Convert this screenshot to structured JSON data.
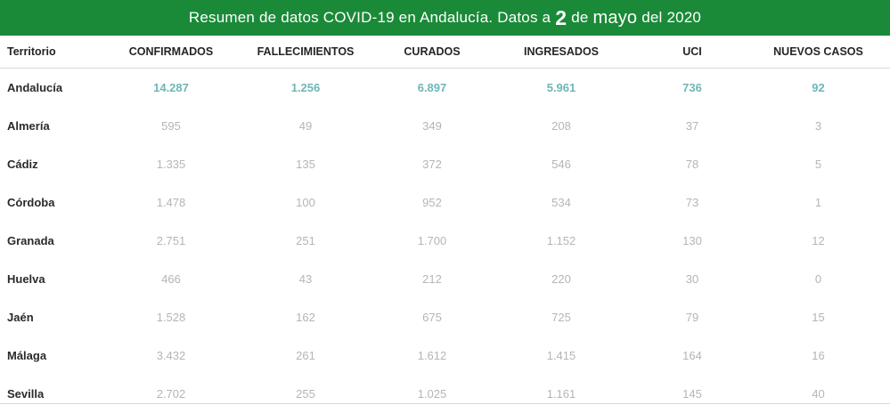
{
  "header": {
    "title_prefix": "Resumen de datos COVID-19 en Andalucía. Datos a",
    "day": "2",
    "word_de": "de",
    "month": "mayo",
    "year_part": "del 2020"
  },
  "columns": [
    "Territorio",
    "CONFIRMADOS",
    "FALLECIMIENTOS",
    "CURADOS",
    "INGRESADOS",
    "UCI",
    "NUEVOS CASOS"
  ],
  "rows": [
    {
      "territorio": "Andalucía",
      "confirmados": "14.287",
      "fallecimientos": "1.256",
      "curados": "6.897",
      "ingresados": "5.961",
      "uci": "736",
      "nuevos_casos": "92"
    },
    {
      "territorio": "Almería",
      "confirmados": "595",
      "fallecimientos": "49",
      "curados": "349",
      "ingresados": "208",
      "uci": "37",
      "nuevos_casos": "3"
    },
    {
      "territorio": "Cádiz",
      "confirmados": "1.335",
      "fallecimientos": "135",
      "curados": "372",
      "ingresados": "546",
      "uci": "78",
      "nuevos_casos": "5"
    },
    {
      "territorio": "Córdoba",
      "confirmados": "1.478",
      "fallecimientos": "100",
      "curados": "952",
      "ingresados": "534",
      "uci": "73",
      "nuevos_casos": "1"
    },
    {
      "territorio": "Granada",
      "confirmados": "2.751",
      "fallecimientos": "251",
      "curados": "1.700",
      "ingresados": "1.152",
      "uci": "130",
      "nuevos_casos": "12"
    },
    {
      "territorio": "Huelva",
      "confirmados": "466",
      "fallecimientos": "43",
      "curados": "212",
      "ingresados": "220",
      "uci": "30",
      "nuevos_casos": "0"
    },
    {
      "territorio": "Jaén",
      "confirmados": "1.528",
      "fallecimientos": "162",
      "curados": "675",
      "ingresados": "725",
      "uci": "79",
      "nuevos_casos": "15"
    },
    {
      "territorio": "Málaga",
      "confirmados": "3.432",
      "fallecimientos": "261",
      "curados": "1.612",
      "ingresados": "1.415",
      "uci": "164",
      "nuevos_casos": "16"
    },
    {
      "territorio": "Sevilla",
      "confirmados": "2.702",
      "fallecimientos": "255",
      "curados": "1.025",
      "ingresados": "1.161",
      "uci": "145",
      "nuevos_casos": "40"
    }
  ],
  "colors": {
    "banner": "#1a8a38",
    "total_values": "#6fb6b6",
    "values": "#b5b5b5"
  }
}
